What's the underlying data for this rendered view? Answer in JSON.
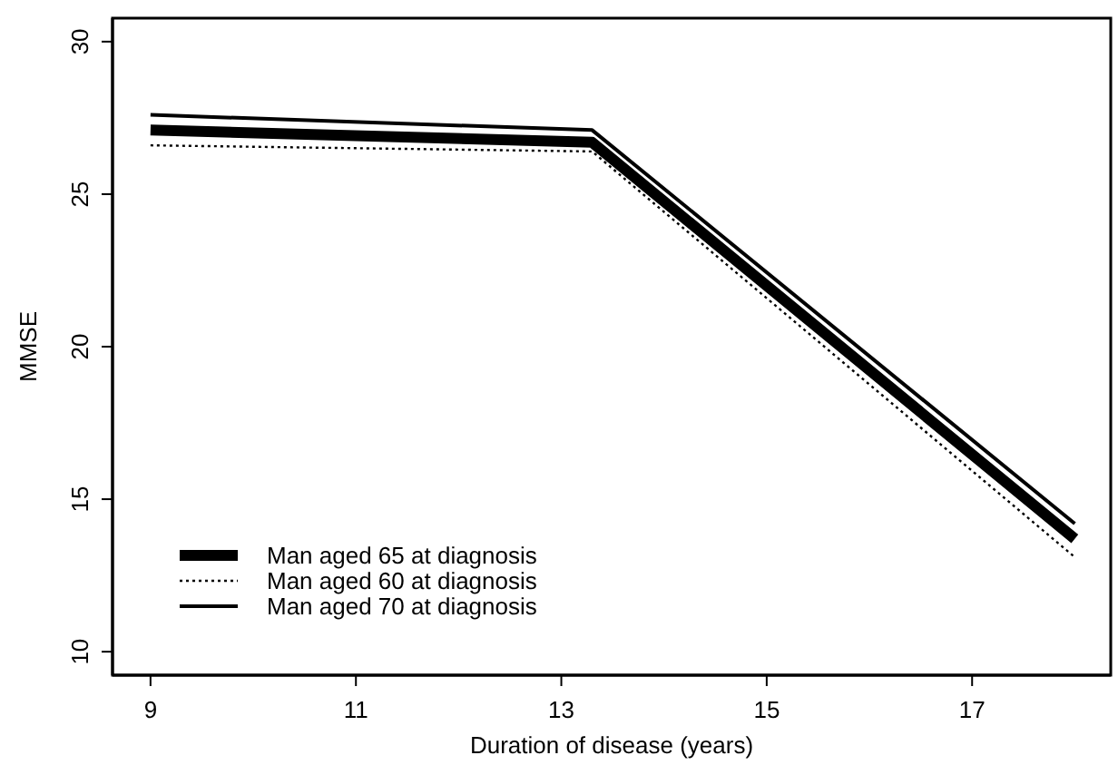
{
  "chart_data": {
    "type": "line",
    "xlabel": "Duration of disease (years)",
    "ylabel": "MMSE",
    "xlim": [
      8.63,
      18.35
    ],
    "ylim": [
      9.23,
      30.77
    ],
    "xticks": [
      9,
      11,
      13,
      15,
      17
    ],
    "yticks": [
      10,
      15,
      20,
      25,
      30
    ],
    "grid": false,
    "legend": "bottom left",
    "marker": "none",
    "series": [
      {
        "name": "Man aged 65 at diagnosis",
        "color": "#000000",
        "line_style": "solid",
        "x": [
          9,
          13.3,
          18
        ],
        "values": [
          27.1,
          26.7,
          13.7
        ]
      },
      {
        "name": "Man aged 60 at diagnosis",
        "color": "#000000",
        "line_style": "dotted",
        "x": [
          9,
          13.3,
          18
        ],
        "values": [
          26.6,
          26.4,
          13.1
        ]
      },
      {
        "name": "Man aged 70 at diagnosis",
        "color": "#000000",
        "line_style": "solid",
        "x": [
          9,
          13.3,
          18
        ],
        "values": [
          27.6,
          27.1,
          14.2
        ]
      }
    ]
  }
}
